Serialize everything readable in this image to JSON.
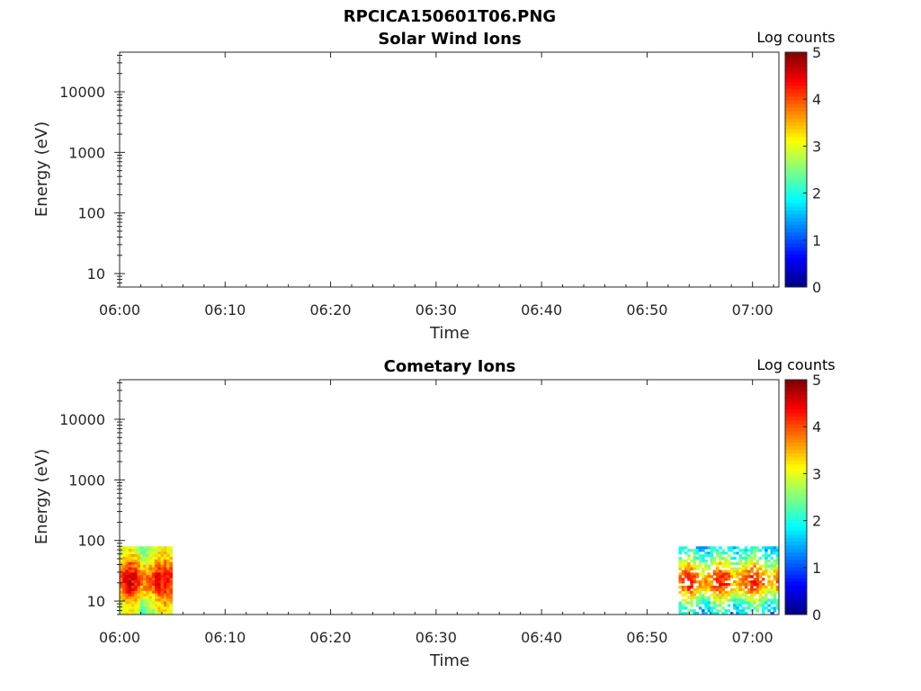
{
  "figure": {
    "title": "RPCICA150601T06.PNG"
  },
  "chart_data": [
    {
      "type": "heatmap",
      "title": "Solar Wind Ions",
      "xlabel": "Time",
      "ylabel": "Energy (eV)",
      "yscale": "log",
      "ylim": [
        6,
        45000
      ],
      "xlim": [
        "06:00",
        "07:02.5"
      ],
      "xticks": [
        "06:00",
        "06:10",
        "06:20",
        "06:30",
        "06:40",
        "06:50",
        "07:00"
      ],
      "yticks": [
        "10",
        "100",
        "1000",
        "10000"
      ],
      "colorbar": {
        "label": "Log counts",
        "min": 0,
        "max": 5,
        "ticks": [
          "0",
          "1",
          "2",
          "3",
          "4",
          "5"
        ],
        "colormap": "jet"
      },
      "blocks": []
    },
    {
      "type": "heatmap",
      "title": "Cometary Ions",
      "xlabel": "Time",
      "ylabel": "Energy (eV)",
      "yscale": "log",
      "ylim": [
        6,
        45000
      ],
      "xlim": [
        "06:00",
        "07:02.5"
      ],
      "xticks": [
        "06:00",
        "06:10",
        "06:20",
        "06:30",
        "06:40",
        "06:50",
        "07:00"
      ],
      "yticks": [
        "10",
        "100",
        "1000",
        "10000"
      ],
      "colorbar": {
        "label": "Log counts",
        "min": 0,
        "max": 5,
        "ticks": [
          "0",
          "1",
          "2",
          "3",
          "4",
          "5"
        ],
        "colormap": "jet"
      },
      "blocks": [
        {
          "start": "06:00",
          "end": "06:05",
          "emin": 6,
          "emax": 80,
          "peak_energy": 22,
          "peak_value": 4.1,
          "base_value": 2.6,
          "sparse": false
        },
        {
          "start": "06:53",
          "end": "07:02.5",
          "emin": 6,
          "emax": 80,
          "peak_energy": 22,
          "peak_value": 3.9,
          "base_value": 1.6,
          "sparse": true
        }
      ]
    }
  ]
}
